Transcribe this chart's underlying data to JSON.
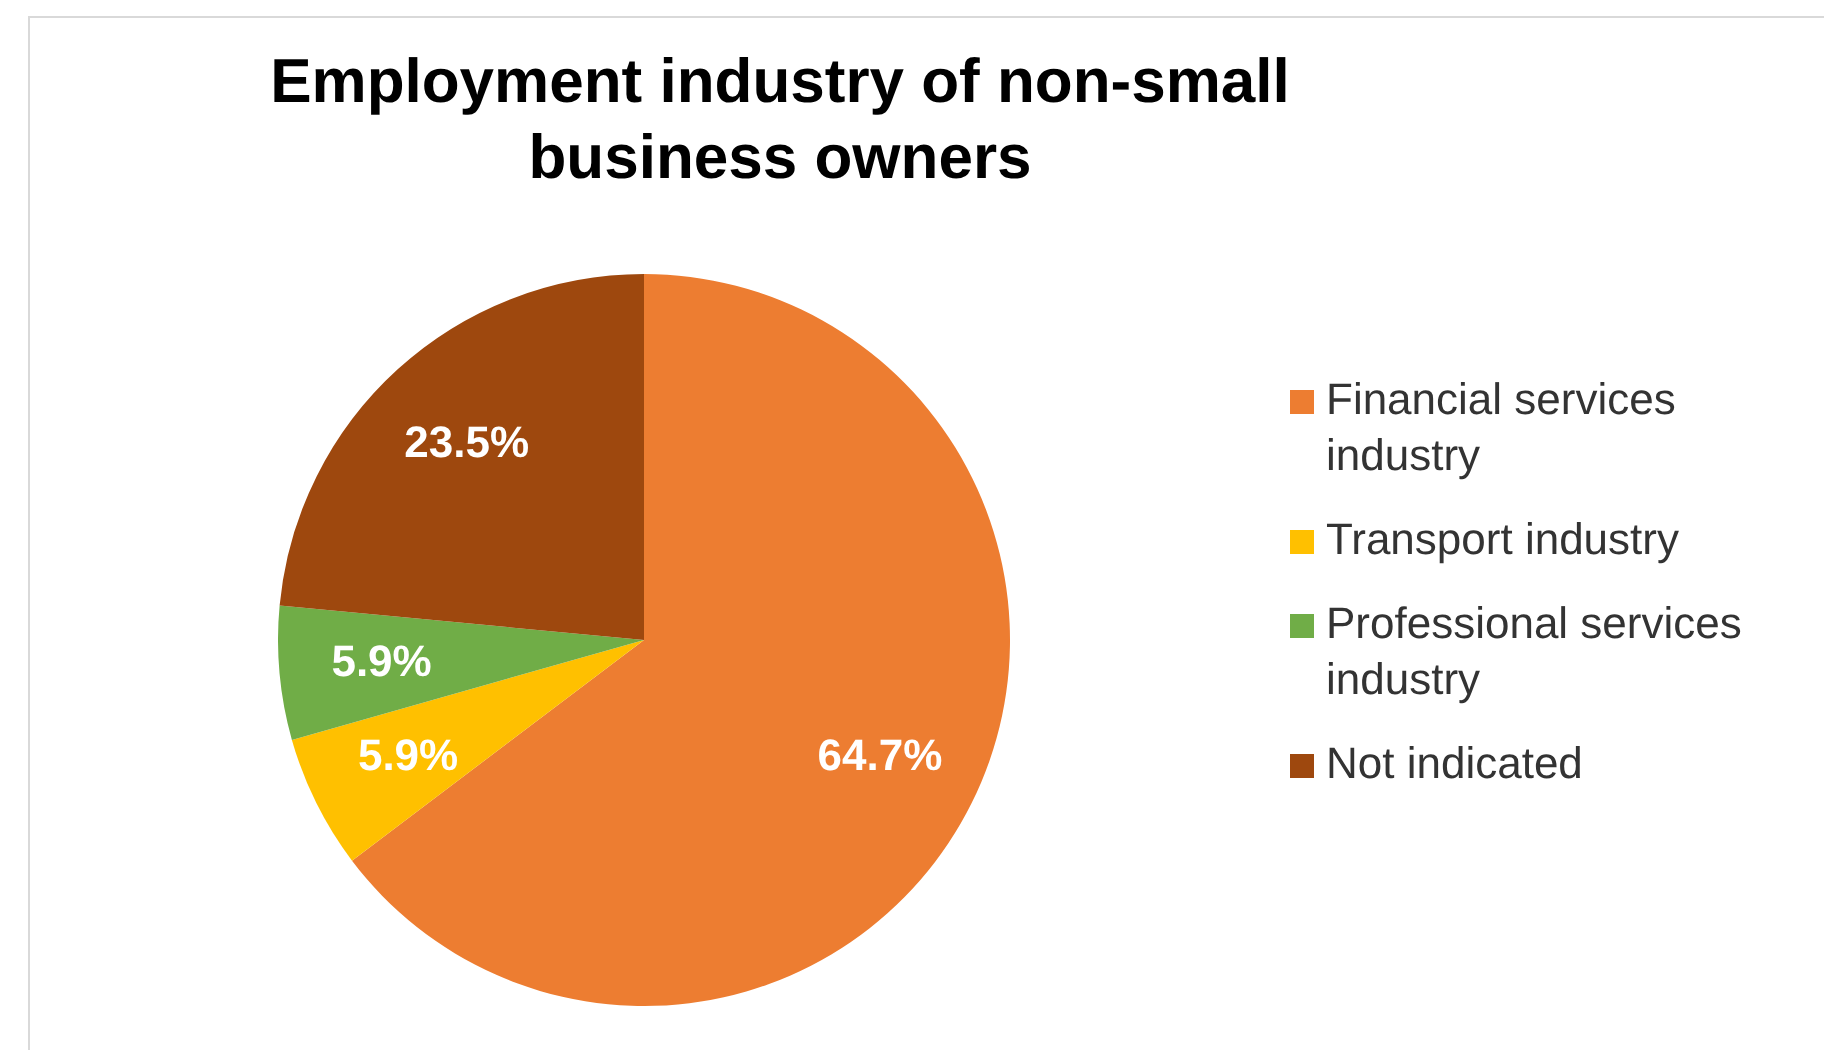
{
  "chart_data": {
    "type": "pie",
    "title": "Employment industry of non-small business owners",
    "categories": [
      "Financial services industry",
      "Transport industry",
      "Professional services industry",
      "Not indicated"
    ],
    "values": [
      64.7,
      5.9,
      5.9,
      23.5
    ],
    "value_labels": [
      "64.7%",
      "5.9%",
      "5.9%",
      "23.5%"
    ],
    "colors": [
      "#ed7d31",
      "#ffc000",
      "#70ad47",
      "#9e480e"
    ],
    "legend": "right"
  }
}
